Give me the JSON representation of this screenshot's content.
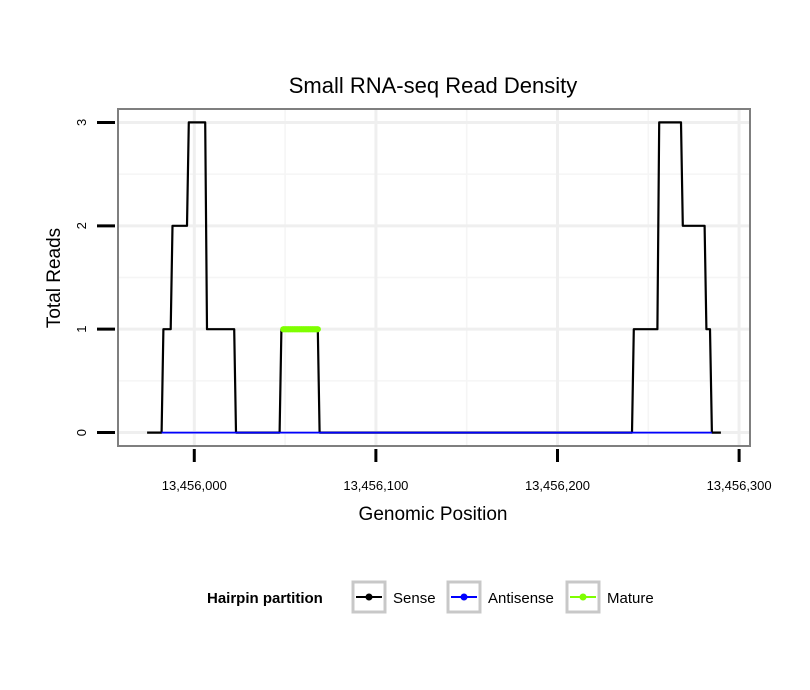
{
  "chart_data": {
    "type": "line",
    "title": "Small RNA-seq Read Density",
    "xlabel": "Genomic Position",
    "ylabel": "Total Reads",
    "xlim": [
      13455958,
      13456306
    ],
    "ylim": [
      -0.13,
      3.13
    ],
    "x_ticks": [
      {
        "value": 13456000,
        "label": "13,456,000"
      },
      {
        "value": 13456100,
        "label": "13,456,100"
      },
      {
        "value": 13456200,
        "label": "13,456,200"
      },
      {
        "value": 13456300,
        "label": "13,456,300"
      }
    ],
    "y_ticks": [
      {
        "value": 0,
        "label": "0"
      },
      {
        "value": 1,
        "label": "1"
      },
      {
        "value": 2,
        "label": "2"
      },
      {
        "value": 3,
        "label": "3"
      }
    ],
    "grid": true,
    "series": [
      {
        "name": "Sense",
        "color": "#000000",
        "x": [
          13455974,
          13455982,
          13455983,
          13455987,
          13455988,
          13455991,
          13455992,
          13455996,
          13455997,
          13456006,
          13456007,
          13456022,
          13456023,
          13456047,
          13456048,
          13456068,
          13456069,
          13456241,
          13456242,
          13456255,
          13456256,
          13456268,
          13456269,
          13456281,
          13456282,
          13456284,
          13456285,
          13456290
        ],
        "y": [
          0,
          0,
          1,
          1,
          2,
          2,
          2,
          2,
          3,
          3,
          1,
          1,
          0,
          0,
          1,
          1,
          0,
          0,
          1,
          1,
          3,
          3,
          2,
          2,
          1,
          1,
          0,
          0
        ]
      },
      {
        "name": "Antisense",
        "color": "#0000ff",
        "x": [
          13455982,
          13456021,
          13456047,
          13456068,
          13456241,
          13456285
        ],
        "y": [
          0,
          0,
          0,
          0,
          0,
          0
        ]
      },
      {
        "name": "Mature",
        "color": "#7fff00",
        "x": [
          13456049,
          13456050,
          13456051,
          13456052,
          13456053,
          13456054,
          13456055,
          13456056,
          13456057,
          13456058,
          13456059,
          13456060,
          13456061,
          13456062,
          13456063,
          13456064,
          13456065,
          13456066,
          13456067,
          13456068
        ],
        "y": [
          1,
          1,
          1,
          1,
          1,
          1,
          1,
          1,
          1,
          1,
          1,
          1,
          1,
          1,
          1,
          1,
          1,
          1,
          1,
          1
        ]
      }
    ],
    "legend": {
      "title": "Hairpin partition",
      "placement": "bottom",
      "entries": [
        "Sense",
        "Antisense",
        "Mature"
      ]
    }
  }
}
